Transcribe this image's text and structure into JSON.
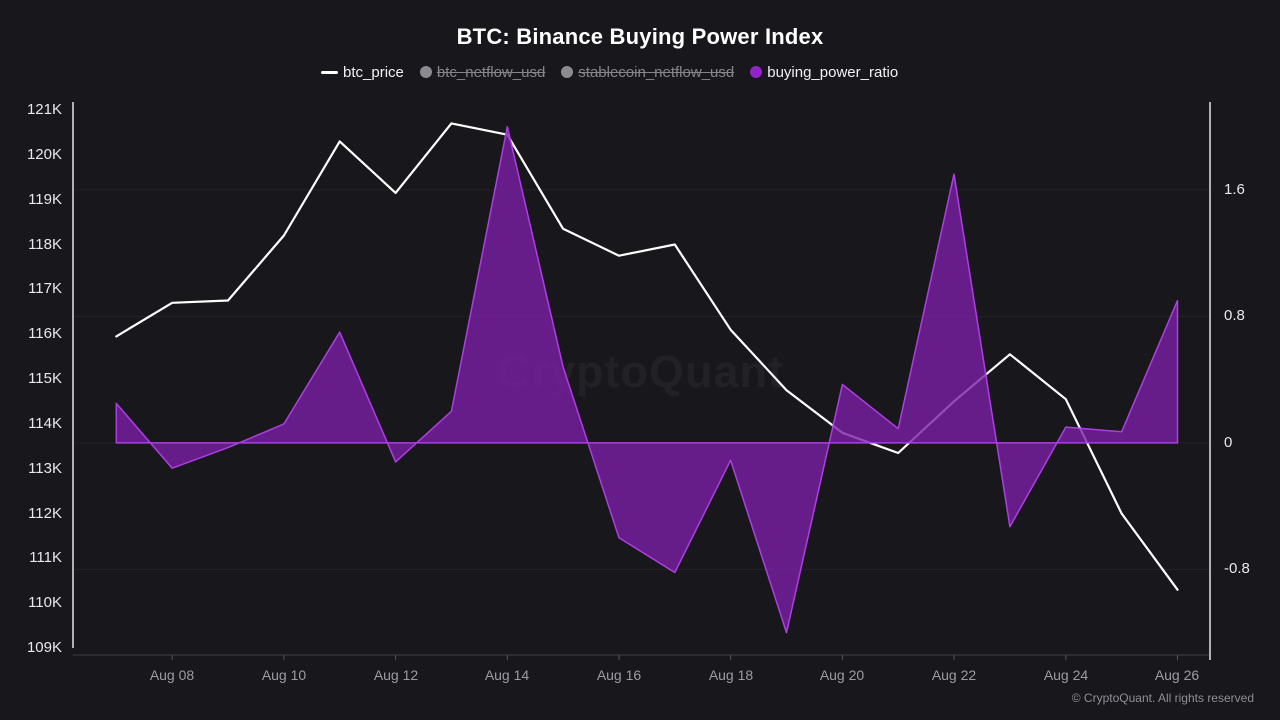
{
  "title": "BTC: Binance Buying Power Index",
  "watermark": "CryptoQuant",
  "footer": "© CryptoQuant. All rights reserved",
  "colors": {
    "background": "#17171c",
    "price_line": "#ffffff",
    "ratio_fill": "#7a1fa6",
    "ratio_stroke": "#ad3fe0",
    "legend_disabled": "#8b8b92",
    "legend_purple_dot": "#9222c9",
    "gridline": "#232329",
    "axis_line": "#e4e4e8"
  },
  "legend": {
    "items": [
      {
        "label": "btc_price",
        "swatch": "line",
        "enabled": true
      },
      {
        "label": "btc_netflow_usd",
        "swatch": "circle",
        "enabled": false
      },
      {
        "label": "stablecoin_netflow_usd",
        "swatch": "circle",
        "enabled": false
      },
      {
        "label": "buying_power_ratio",
        "swatch": "circle",
        "enabled": true
      }
    ]
  },
  "chart_data": {
    "type": "mixed",
    "title": "BTC: Binance Buying Power Index",
    "grid": "horizontal",
    "legend_position": "top",
    "dates": [
      "Aug 07",
      "Aug 08",
      "Aug 09",
      "Aug 10",
      "Aug 11",
      "Aug 12",
      "Aug 13",
      "Aug 14",
      "Aug 15",
      "Aug 16",
      "Aug 17",
      "Aug 18",
      "Aug 19",
      "Aug 20",
      "Aug 21",
      "Aug 22",
      "Aug 23",
      "Aug 24",
      "Aug 25",
      "Aug 26"
    ],
    "x_tick_labels": [
      "Aug 08",
      "Aug 10",
      "Aug 12",
      "Aug 14",
      "Aug 16",
      "Aug 18",
      "Aug 20",
      "Aug 22",
      "Aug 24",
      "Aug 26"
    ],
    "series": [
      {
        "name": "btc_price",
        "type": "line",
        "axis": "left",
        "unit": "K USD",
        "values": [
          115.95,
          116.7,
          116.75,
          118.2,
          120.3,
          119.15,
          120.7,
          120.45,
          118.35,
          117.75,
          118.0,
          116.1,
          114.75,
          113.8,
          113.35,
          114.5,
          115.55,
          114.55,
          112.0,
          110.3
        ]
      },
      {
        "name": "buying_power_ratio",
        "type": "area",
        "axis": "right",
        "baseline": 0,
        "values": [
          0.25,
          -0.16,
          -0.03,
          0.12,
          0.7,
          -0.12,
          0.2,
          2.0,
          0.48,
          -0.6,
          -0.82,
          -0.11,
          -1.2,
          0.37,
          0.09,
          1.7,
          -0.53,
          0.1,
          0.07,
          0.9
        ]
      }
    ],
    "disabled_series": [
      "btc_netflow_usd",
      "stablecoin_netflow_usd"
    ],
    "left_axis": {
      "unit": "K",
      "min": 109,
      "max": 121,
      "tick_labels": [
        "121K",
        "120K",
        "119K",
        "118K",
        "117K",
        "116K",
        "115K",
        "114K",
        "113K",
        "112K",
        "111K",
        "110K",
        "109K"
      ],
      "tick_values": [
        121,
        120,
        119,
        118,
        117,
        116,
        115,
        114,
        113,
        112,
        111,
        110,
        109
      ]
    },
    "right_axis": {
      "tick_labels": [
        "1.6",
        "0.8",
        "0",
        "-0.8"
      ],
      "tick_values": [
        1.6,
        0.8,
        0,
        -0.8
      ]
    }
  }
}
